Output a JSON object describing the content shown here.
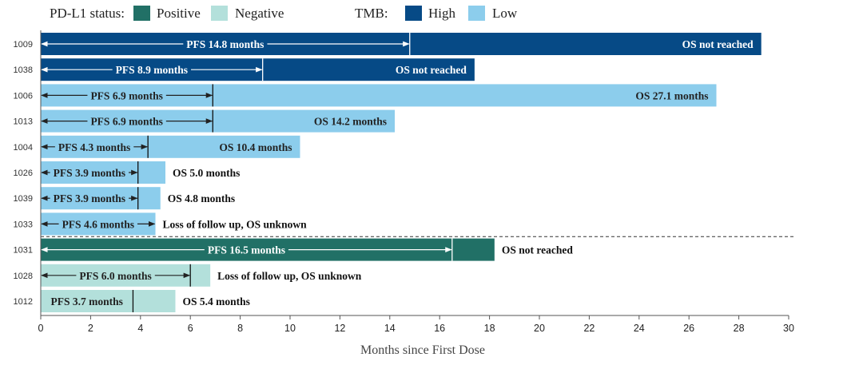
{
  "legend": {
    "pdl1_title": "PD-L1 status:",
    "pdl1_positive": "Positive",
    "pdl1_negative": "Negative",
    "tmb_title": "TMB:",
    "tmb_high": "High",
    "tmb_low": "Low"
  },
  "colors": {
    "tmb_high": "#064a86",
    "tmb_low": "#8ccdec",
    "pdl1_positive": "#217066",
    "pdl1_negative": "#b3e0db"
  },
  "chart_data": {
    "type": "bar",
    "orientation": "horizontal",
    "xlabel": "Months since First Dose",
    "xlim": [
      0,
      30
    ],
    "xticks": [
      0,
      2,
      4,
      6,
      8,
      10,
      12,
      14,
      16,
      18,
      20,
      22,
      24,
      26,
      28,
      30
    ],
    "divider_after_index": 7,
    "patients": [
      {
        "id": "1009",
        "group": "tmb_high",
        "os": 28.9,
        "pfs": 14.8,
        "pfs_label": "PFS 14.8 months",
        "os_label": "OS not reached",
        "os_label_inside": true,
        "arrows": true
      },
      {
        "id": "1038",
        "group": "tmb_high",
        "os": 17.4,
        "pfs": 8.9,
        "pfs_label": "PFS 8.9 months",
        "os_label": "OS not reached",
        "os_label_inside": true,
        "arrows": true
      },
      {
        "id": "1006",
        "group": "tmb_low",
        "os": 27.1,
        "pfs": 6.9,
        "pfs_label": "PFS 6.9 months",
        "os_label": "OS 27.1 months",
        "os_label_inside": true,
        "arrows": true
      },
      {
        "id": "1013",
        "group": "tmb_low",
        "os": 14.2,
        "pfs": 6.9,
        "pfs_label": "PFS 6.9 months",
        "os_label": "OS 14.2 months",
        "os_label_inside": true,
        "arrows": true
      },
      {
        "id": "1004",
        "group": "tmb_low",
        "os": 10.4,
        "pfs": 4.3,
        "pfs_label": "PFS 4.3 months",
        "os_label": "OS 10.4 months",
        "os_label_inside": true,
        "arrows": true
      },
      {
        "id": "1026",
        "group": "tmb_low",
        "os": 5.0,
        "pfs": 3.9,
        "pfs_label": "PFS 3.9 months",
        "os_label": "OS 5.0 months",
        "os_label_inside": false,
        "arrows": true
      },
      {
        "id": "1039",
        "group": "tmb_low",
        "os": 4.8,
        "pfs": 3.9,
        "pfs_label": "PFS 3.9 months",
        "os_label": "OS 4.8 months",
        "os_label_inside": false,
        "arrows": true
      },
      {
        "id": "1033",
        "group": "tmb_low",
        "os": 4.6,
        "pfs": null,
        "pfs_label": "PFS 4.6 months",
        "os_label": "Loss of follow up, OS unknown",
        "os_label_inside": false,
        "arrows": true
      },
      {
        "id": "1031",
        "group": "pdl1_positive",
        "os": 18.2,
        "pfs": 16.5,
        "pfs_label": "PFS 16.5 months",
        "os_label": "OS not reached",
        "os_label_inside": false,
        "arrows": true
      },
      {
        "id": "1028",
        "group": "pdl1_negative",
        "os": 6.8,
        "pfs": 6.0,
        "pfs_label": "PFS 6.0 months",
        "os_label": "Loss of follow up, OS unknown",
        "os_label_inside": false,
        "arrows": true
      },
      {
        "id": "1012",
        "group": "pdl1_negative",
        "os": 5.4,
        "pfs": 3.7,
        "pfs_label": "PFS 3.7 months",
        "os_label": "OS 5.4 months",
        "os_label_inside": false,
        "arrows": false
      }
    ]
  }
}
